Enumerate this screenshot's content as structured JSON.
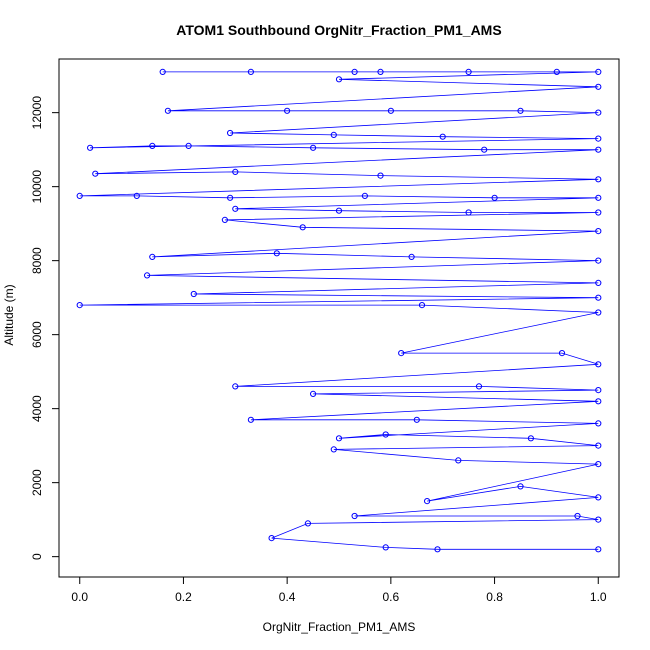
{
  "chart_data": {
    "type": "scatter",
    "title": "ATOM1 Southbound OrgNitr_Fraction_PM1_AMS",
    "xlabel": "OrgNitr_Fraction_PM1_AMS",
    "ylabel": "Altitude (m)",
    "xlim": [
      -0.04,
      1.04
    ],
    "ylim": [
      -550,
      13450
    ],
    "x_ticks": [
      0.0,
      0.2,
      0.4,
      0.6,
      0.8,
      1.0
    ],
    "x_tick_labels": [
      "0.0",
      "0.2",
      "0.4",
      "0.6",
      "0.8",
      "1.0"
    ],
    "y_ticks": [
      0,
      2000,
      4000,
      6000,
      8000,
      10000,
      12000
    ],
    "y_tick_labels": [
      "0",
      "2000",
      "4000",
      "6000",
      "8000",
      "10000",
      "12000"
    ],
    "grid": false,
    "marker": "open-circle",
    "connect_points": true,
    "series_color": "#0000ff",
    "segments": [
      {
        "x": 0.16,
        "y": 13100
      },
      {
        "x": 0.33,
        "y": 13100
      },
      {
        "x": 0.53,
        "y": 13100
      },
      {
        "x": 0.58,
        "y": 13100
      },
      {
        "x": 0.75,
        "y": 13100
      },
      {
        "x": 0.92,
        "y": 13100
      },
      {
        "x": 1.0,
        "y": 13100
      },
      {
        "x": 0.5,
        "y": 12900
      },
      {
        "x": 1.0,
        "y": 12700
      },
      {
        "x": 0.17,
        "y": 12050
      },
      {
        "x": 0.4,
        "y": 12050
      },
      {
        "x": 0.6,
        "y": 12050
      },
      {
        "x": 0.85,
        "y": 12050
      },
      {
        "x": 1.0,
        "y": 12000
      },
      {
        "x": 0.29,
        "y": 11450
      },
      {
        "x": 0.49,
        "y": 11400
      },
      {
        "x": 0.7,
        "y": 11350
      },
      {
        "x": 1.0,
        "y": 11300
      },
      {
        "x": 0.02,
        "y": 11050
      },
      {
        "x": 0.14,
        "y": 11100
      },
      {
        "x": 0.21,
        "y": 11100
      },
      {
        "x": 0.45,
        "y": 11050
      },
      {
        "x": 0.78,
        "y": 11000
      },
      {
        "x": 1.0,
        "y": 11000
      },
      {
        "x": 0.03,
        "y": 10350
      },
      {
        "x": 0.3,
        "y": 10400
      },
      {
        "x": 0.58,
        "y": 10300
      },
      {
        "x": 1.0,
        "y": 10200
      },
      {
        "x": 0.0,
        "y": 9750
      },
      {
        "x": 0.11,
        "y": 9750
      },
      {
        "x": 0.29,
        "y": 9700
      },
      {
        "x": 0.55,
        "y": 9750
      },
      {
        "x": 0.8,
        "y": 9700
      },
      {
        "x": 1.0,
        "y": 9700
      },
      {
        "x": 0.3,
        "y": 9400
      },
      {
        "x": 0.5,
        "y": 9350
      },
      {
        "x": 0.75,
        "y": 9300
      },
      {
        "x": 1.0,
        "y": 9300
      },
      {
        "x": 0.28,
        "y": 9100
      },
      {
        "x": 0.43,
        "y": 8900
      },
      {
        "x": 1.0,
        "y": 8800
      },
      {
        "x": 0.14,
        "y": 8100
      },
      {
        "x": 0.38,
        "y": 8200
      },
      {
        "x": 0.64,
        "y": 8100
      },
      {
        "x": 1.0,
        "y": 8000
      },
      {
        "x": 0.13,
        "y": 7600
      },
      {
        "x": 1.0,
        "y": 7400
      },
      {
        "x": 0.22,
        "y": 7100
      },
      {
        "x": 1.0,
        "y": 7000
      },
      {
        "x": 0.0,
        "y": 6800
      },
      {
        "x": 0.66,
        "y": 6800
      },
      {
        "x": 1.0,
        "y": 6600
      },
      {
        "x": 0.62,
        "y": 5500
      },
      {
        "x": 0.93,
        "y": 5500
      },
      {
        "x": 1.0,
        "y": 5200
      },
      {
        "x": 0.3,
        "y": 4600
      },
      {
        "x": 0.77,
        "y": 4600
      },
      {
        "x": 1.0,
        "y": 4500
      },
      {
        "x": 0.45,
        "y": 4400
      },
      {
        "x": 1.0,
        "y": 4200
      },
      {
        "x": 0.33,
        "y": 3700
      },
      {
        "x": 0.65,
        "y": 3700
      },
      {
        "x": 1.0,
        "y": 3600
      },
      {
        "x": 0.5,
        "y": 3200
      },
      {
        "x": 0.59,
        "y": 3300
      },
      {
        "x": 0.87,
        "y": 3200
      },
      {
        "x": 1.0,
        "y": 3000
      },
      {
        "x": 0.49,
        "y": 2900
      },
      {
        "x": 0.73,
        "y": 2600
      },
      {
        "x": 1.0,
        "y": 2500
      },
      {
        "x": 0.67,
        "y": 1500
      },
      {
        "x": 0.85,
        "y": 1900
      },
      {
        "x": 1.0,
        "y": 1600
      },
      {
        "x": 0.53,
        "y": 1100
      },
      {
        "x": 0.96,
        "y": 1100
      },
      {
        "x": 1.0,
        "y": 1000
      },
      {
        "x": 0.44,
        "y": 900
      },
      {
        "x": 0.37,
        "y": 500
      },
      {
        "x": 0.59,
        "y": 250
      },
      {
        "x": 0.69,
        "y": 200
      },
      {
        "x": 1.0,
        "y": 200
      }
    ]
  }
}
